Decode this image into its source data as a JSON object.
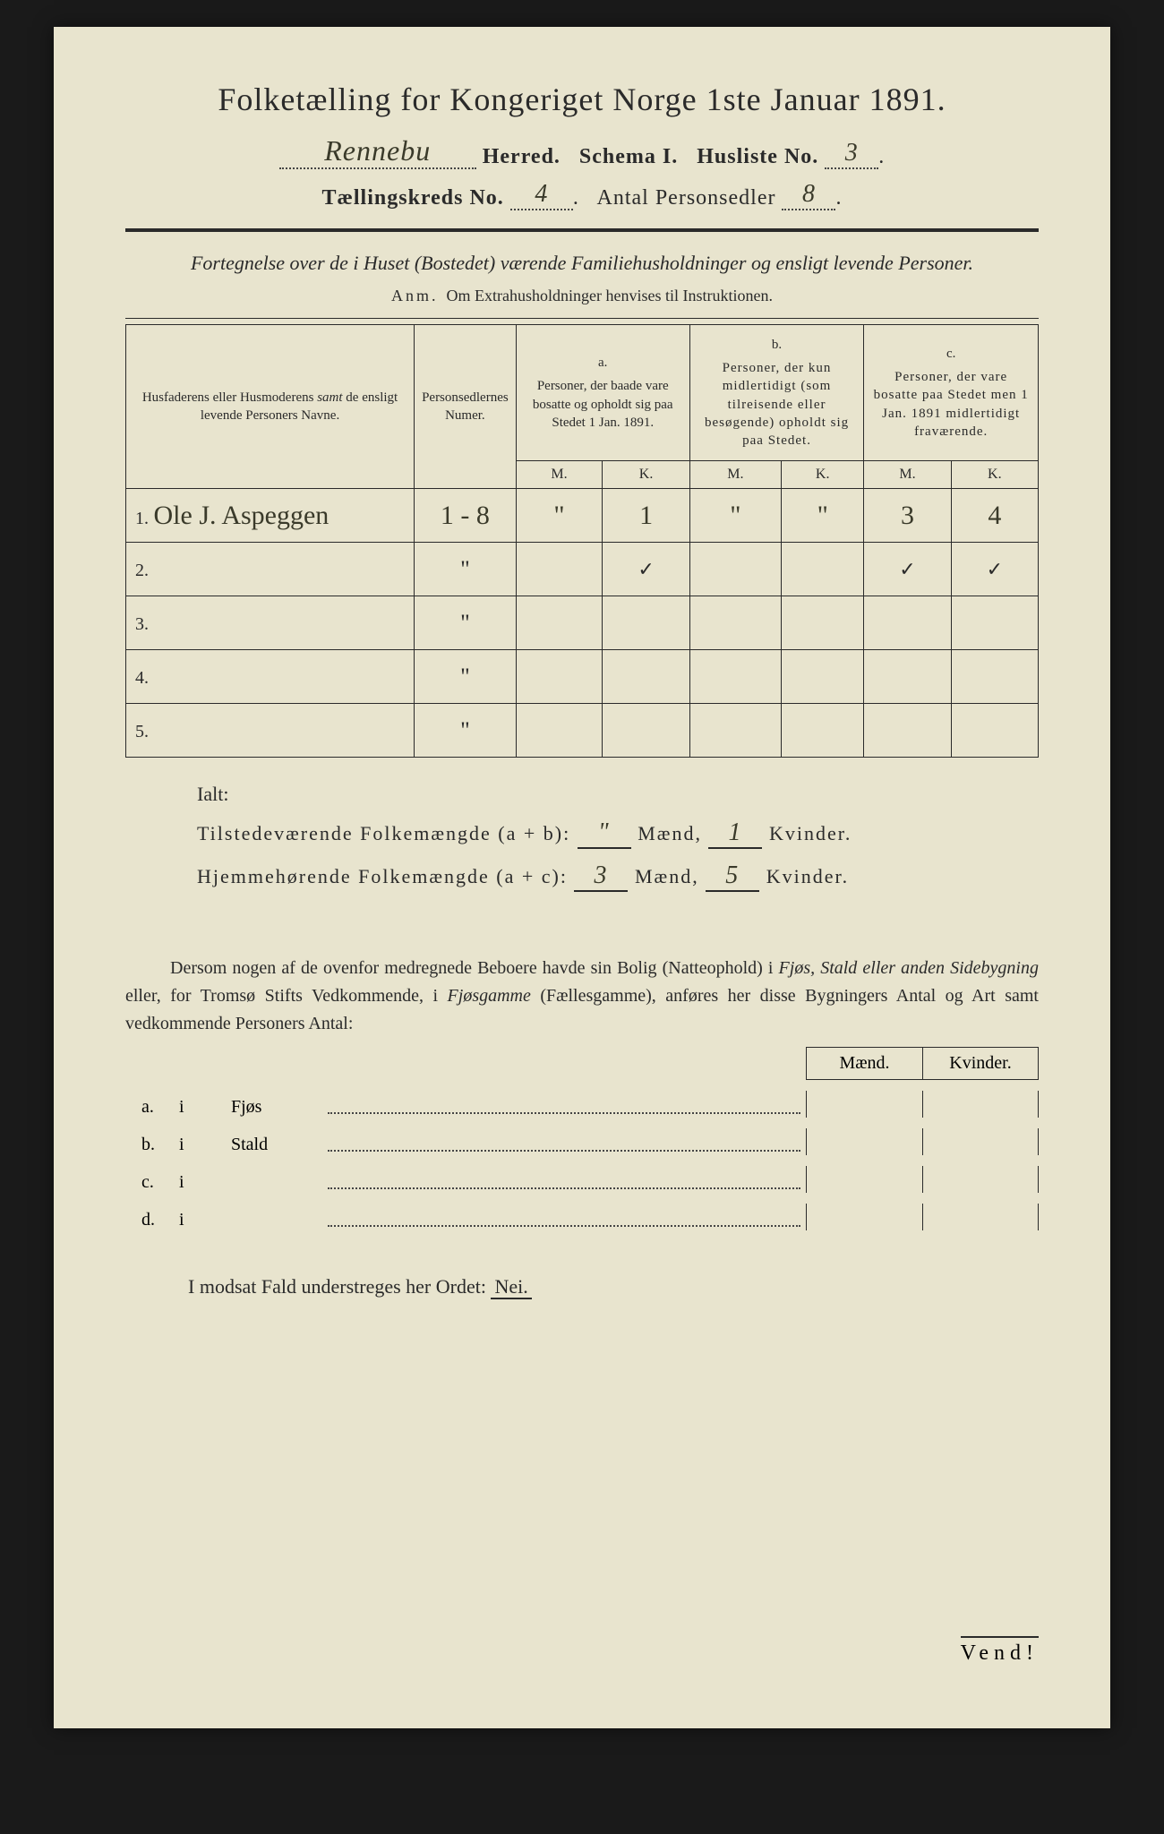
{
  "document": {
    "title": "Folketælling for Kongeriget Norge 1ste Januar 1891.",
    "herred_value": "Rennebu",
    "herred_label": "Herred.",
    "schema_label": "Schema I.",
    "husliste_label": "Husliste No.",
    "husliste_value": "3",
    "kreds_label": "Tællingskreds No.",
    "kreds_value": "4",
    "antal_label": "Antal Personsedler",
    "antal_value": "8",
    "fortegnelse": "Fortegnelse over de i Huset (Bostedet) værende Familiehusholdninger og ensligt levende Personer.",
    "anm_label": "Anm.",
    "anm_text": "Om Extrahusholdninger henvises til Instruktionen."
  },
  "table": {
    "col1_header": "Husfaderens eller Husmoderens samt de ensligt levende Personers Navne.",
    "col2_header": "Personsedlernes Numer.",
    "groupA_label": "a.",
    "groupA_text": "Personer, der baade vare bosatte og opholdt sig paa Stedet 1 Jan. 1891.",
    "groupB_label": "b.",
    "groupB_text": "Personer, der kun midlertidigt (som tilreisende eller besøgende) opholdt sig paa Stedet.",
    "groupC_label": "c.",
    "groupC_text": "Personer, der vare bosatte paa Stedet men 1 Jan. 1891 midlertidigt fraværende.",
    "M": "M.",
    "K": "K.",
    "rows": [
      {
        "n": "1.",
        "name": "Ole J. Aspeggen",
        "num": "1 - 8",
        "aM": "\"",
        "aK": "1",
        "bM": "\"",
        "bK": "\"",
        "cM": "3",
        "cK": "4"
      },
      {
        "n": "2.",
        "name": "",
        "num": "\"",
        "aM": "",
        "aK": "✓",
        "bM": "",
        "bK": "",
        "cM": "✓",
        "cK": "✓"
      },
      {
        "n": "3.",
        "name": "",
        "num": "\"",
        "aM": "",
        "aK": "",
        "bM": "",
        "bK": "",
        "cM": "",
        "cK": ""
      },
      {
        "n": "4.",
        "name": "",
        "num": "\"",
        "aM": "",
        "aK": "",
        "bM": "",
        "bK": "",
        "cM": "",
        "cK": ""
      },
      {
        "n": "5.",
        "name": "",
        "num": "\"",
        "aM": "",
        "aK": "",
        "bM": "",
        "bK": "",
        "cM": "",
        "cK": ""
      }
    ]
  },
  "totals": {
    "ialt_label": "Ialt:",
    "line1_label": "Tilstedeværende Folkemængde (a + b):",
    "line1_m": "\"",
    "line1_k": "1",
    "line2_label": "Hjemmehørende Folkemængde (a + c):",
    "line2_m": "3",
    "line2_k": "5",
    "maend": "Mænd,",
    "kvinder": "Kvinder."
  },
  "paragraph": {
    "text1": "Dersom nogen af de ovenfor medregnede Beboere havde sin Bolig (Natteophold) i ",
    "ital1": "Fjøs, Stald eller anden Sidebygning",
    "text2": " eller, for Tromsø Stifts Vedkommende, i ",
    "ital2": "Fjøsgamme",
    "text3": " (Fællesgamme), anføres her disse Bygningers Antal og Art samt vedkommende Personers Antal:"
  },
  "mk": {
    "maend": "Mænd.",
    "kvinder": "Kvinder."
  },
  "abc": {
    "a": {
      "lbl": "a.",
      "i": "i",
      "word": "Fjøs"
    },
    "b": {
      "lbl": "b.",
      "i": "i",
      "word": "Stald"
    },
    "c": {
      "lbl": "c.",
      "i": "i",
      "word": ""
    },
    "d": {
      "lbl": "d.",
      "i": "i",
      "word": ""
    }
  },
  "modsat": {
    "text": "I modsat Fald understreges her Ordet: ",
    "nei": "Nei."
  },
  "vend": "Vend!",
  "colors": {
    "paper": "#e8e4ce",
    "ink": "#2a2a2a",
    "handwriting": "#3a3a2a",
    "background": "#1a1a1a"
  }
}
